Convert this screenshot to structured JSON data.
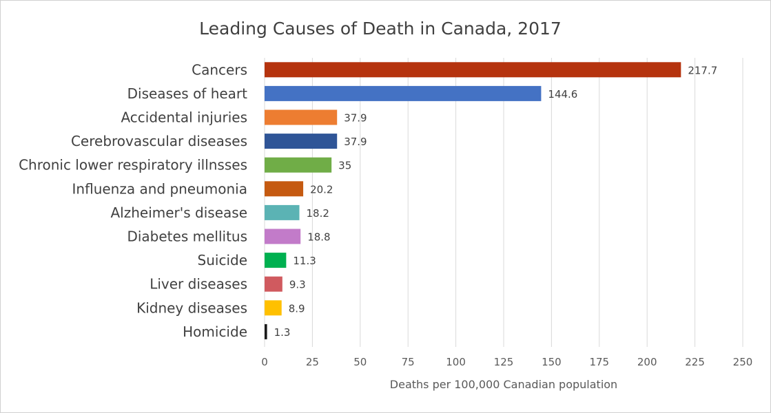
{
  "chart_data": {
    "type": "bar",
    "orientation": "horizontal",
    "title": "Leading Causes of Death in Canada, 2017",
    "xlabel": "Deaths per 100,000 Canadian population",
    "ylabel": "",
    "xlim": [
      0,
      250
    ],
    "xticks": [
      0,
      25,
      50,
      75,
      100,
      125,
      150,
      175,
      200,
      225,
      250
    ],
    "grid": true,
    "legend": "none",
    "categories": [
      "Cancers",
      "Diseases of heart",
      "Accidental injuries",
      "Cerebrovascular diseases",
      "Chronic lower respiratory illnsses",
      "Influenza and pneumonia",
      "Alzheimer's disease",
      "Diabetes mellitus",
      "Suicide",
      "Liver diseases",
      "Kidney diseases",
      "Homicide"
    ],
    "values": [
      217.7,
      144.6,
      37.9,
      37.9,
      35,
      20.2,
      18.2,
      18.8,
      11.3,
      9.3,
      8.9,
      1.3
    ],
    "data_labels": [
      "217.7",
      "144.6",
      "37.9",
      "37.9",
      "35",
      "20.2",
      "18.2",
      "18.8",
      "11.3",
      "9.3",
      "8.9",
      "1.3"
    ],
    "colors": [
      "#B5330E",
      "#4472C4",
      "#ED7D31",
      "#2F5597",
      "#70AD47",
      "#C55A11",
      "#5BB3B4",
      "#C27BC9",
      "#00B050",
      "#D05A5F",
      "#FFC000",
      "#1A1A1A"
    ]
  }
}
